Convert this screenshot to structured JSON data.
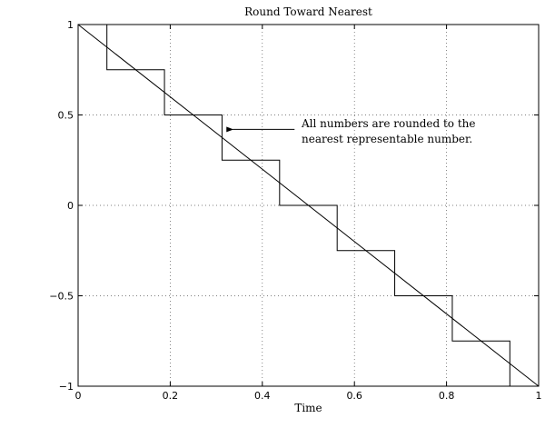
{
  "chart_data": {
    "type": "line",
    "title": "Round Toward Nearest",
    "xlabel": "Time",
    "ylabel": "",
    "xlim": [
      0,
      1
    ],
    "ylim": [
      -1,
      1
    ],
    "grid": true,
    "xticks": [
      0,
      0.2,
      0.4,
      0.6,
      0.8,
      1
    ],
    "xtick_labels": [
      "0",
      "0.2",
      "0.4",
      "0.6",
      "0.8",
      "1"
    ],
    "yticks": [
      -1,
      -0.5,
      0,
      0.5,
      1
    ],
    "ytick_labels": [
      "−1",
      "−0.5",
      "0",
      "0.5",
      "1"
    ],
    "series": [
      {
        "style": "line",
        "x": [
          0,
          1
        ],
        "y": [
          1,
          -1
        ]
      },
      {
        "style": "step",
        "x": [
          0.0625,
          0.0625,
          0.1875,
          0.1875,
          0.3125,
          0.3125,
          0.4375,
          0.4375,
          0.5625,
          0.5625,
          0.6875,
          0.6875,
          0.8125,
          0.8125,
          0.9375,
          0.9375,
          1.0
        ],
        "y": [
          1.0,
          0.75,
          0.75,
          0.5,
          0.5,
          0.25,
          0.25,
          0.0,
          0.0,
          -0.25,
          -0.25,
          -0.5,
          -0.5,
          -0.75,
          -0.75,
          -1.0,
          -1.0
        ]
      }
    ],
    "annotation": {
      "lines": [
        "All numbers are rounded to the",
        "nearest representable number."
      ],
      "arrow_to": [
        0.32,
        0.42
      ],
      "arrow_from": [
        0.47,
        0.42
      ]
    }
  }
}
